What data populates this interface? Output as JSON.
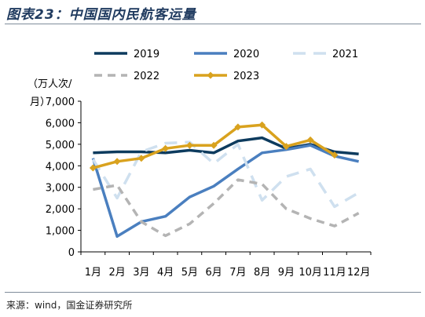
{
  "figure": {
    "title": "图表23：中国国内民航客运量",
    "source": "来源：wind，国金证券研究所"
  },
  "chart_data": {
    "type": "line",
    "ylabel_lines": [
      "（万人次/",
      "月）"
    ],
    "categories": [
      "1月",
      "2月",
      "3月",
      "4月",
      "5月",
      "6月",
      "7月",
      "8月",
      "9月",
      "10月",
      "11月",
      "12月"
    ],
    "ylim": [
      0,
      7000
    ],
    "yticks": [
      0,
      1000,
      2000,
      3000,
      4000,
      5000,
      6000,
      7000
    ],
    "ytick_labels": [
      "0",
      "1,000",
      "2,000",
      "3,000",
      "4,000",
      "5,000",
      "6,000",
      "7,000"
    ],
    "legend_position": "top",
    "grid": false,
    "series": [
      {
        "name": "2019",
        "color": "#0d3b5e",
        "dash": "solid",
        "markers": false,
        "values": [
          4600,
          4650,
          4650,
          4600,
          4720,
          4600,
          5150,
          5300,
          4800,
          5000,
          4650,
          4550
        ]
      },
      {
        "name": "2020",
        "color": "#4a7fbf",
        "dash": "solid",
        "markers": false,
        "values": [
          4350,
          720,
          1400,
          1650,
          2550,
          3050,
          3850,
          4600,
          4750,
          4950,
          4450,
          4200
        ]
      },
      {
        "name": "2021",
        "color": "#cfe0ef",
        "dash": "long",
        "markers": false,
        "values": [
          4300,
          2500,
          4650,
          5050,
          5100,
          4100,
          5000,
          2400,
          3500,
          3850,
          2100,
          2750
        ]
      },
      {
        "name": "2022",
        "color": "#b4b4b4",
        "dash": "medium",
        "markers": false,
        "values": [
          2900,
          3100,
          1400,
          750,
          1300,
          2250,
          3350,
          3150,
          2000,
          1550,
          1200,
          1800
        ]
      },
      {
        "name": "2023",
        "color": "#d9a21e",
        "dash": "solid",
        "markers": true,
        "values": [
          3900,
          4200,
          4350,
          4800,
          4950,
          4950,
          5800,
          5900,
          4900,
          5200,
          4500,
          null
        ]
      }
    ]
  }
}
